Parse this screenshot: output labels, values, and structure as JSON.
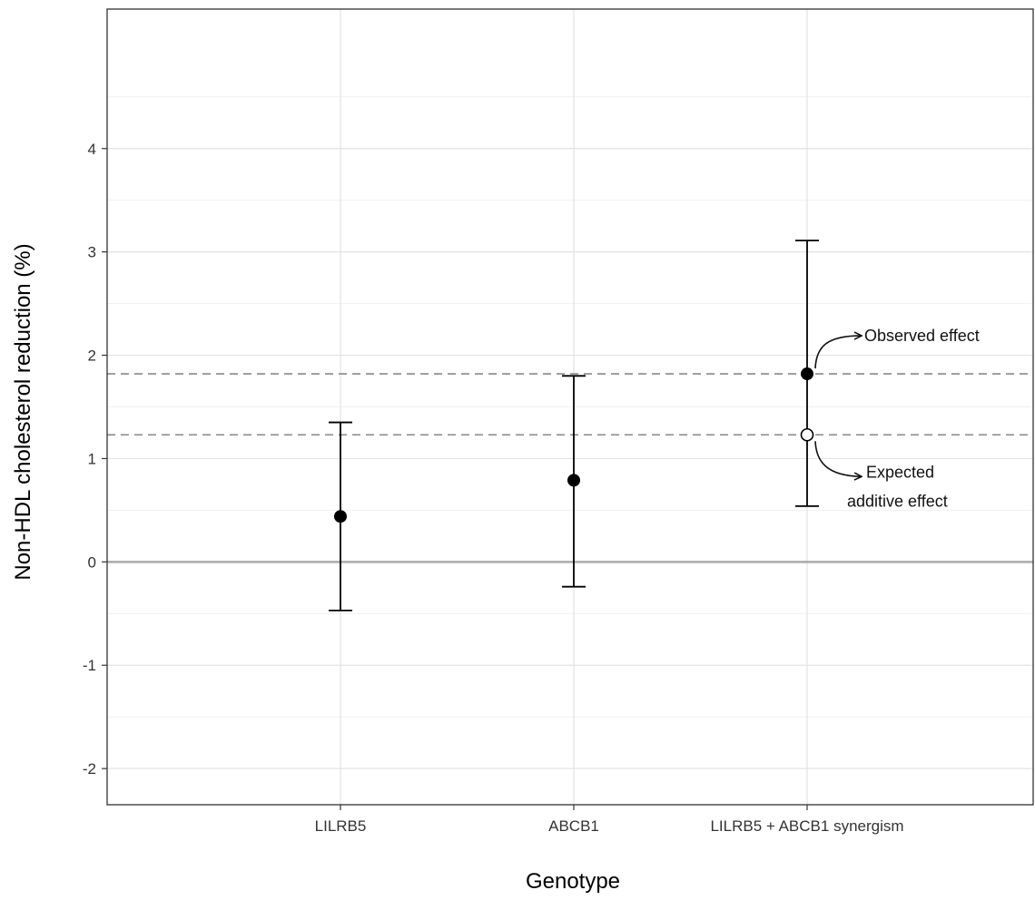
{
  "chart_data": {
    "type": "scatter",
    "xlabel": "Genotype",
    "ylabel": "Non-HDL cholesterol reduction (%)",
    "ylim": [
      -2.35,
      5.35
    ],
    "y_ticks": [
      "-2",
      "-1",
      "0",
      "1",
      "2",
      "3",
      "4"
    ],
    "y_tick_values": [
      -2,
      -1,
      0,
      1,
      2,
      3,
      4
    ],
    "grid": true,
    "categories": [
      "LILRB5",
      "ABCB1",
      "LILRB5 + ABCB1 synergism"
    ],
    "points": [
      {
        "category": "LILRB5",
        "value": 0.44,
        "ci_low": -0.47,
        "ci_high": 1.35,
        "marker": "filled"
      },
      {
        "category": "ABCB1",
        "value": 0.79,
        "ci_low": -0.24,
        "ci_high": 1.8,
        "marker": "filled"
      },
      {
        "category": "LILRB5 + ABCB1 synergism",
        "value": 1.82,
        "ci_low": 0.54,
        "ci_high": 3.11,
        "marker": "filled"
      },
      {
        "category": "LILRB5 + ABCB1 synergism",
        "value": 1.23,
        "marker": "open"
      }
    ],
    "reference_lines": [
      {
        "value": 1.82,
        "style": "dashed"
      },
      {
        "value": 1.23,
        "style": "dashed"
      },
      {
        "value": 0,
        "style": "solid"
      }
    ],
    "annotations": [
      {
        "lines": [
          "Observed effect"
        ],
        "target_value": 1.82
      },
      {
        "lines": [
          "Expected",
          "additive effect"
        ],
        "target_value": 1.23
      }
    ],
    "colors": {
      "points": "#000000",
      "grid": "#e3e3e3",
      "dashed_line": "#888888",
      "zero_line": "#b0b0b0",
      "frame": "#333333"
    }
  }
}
